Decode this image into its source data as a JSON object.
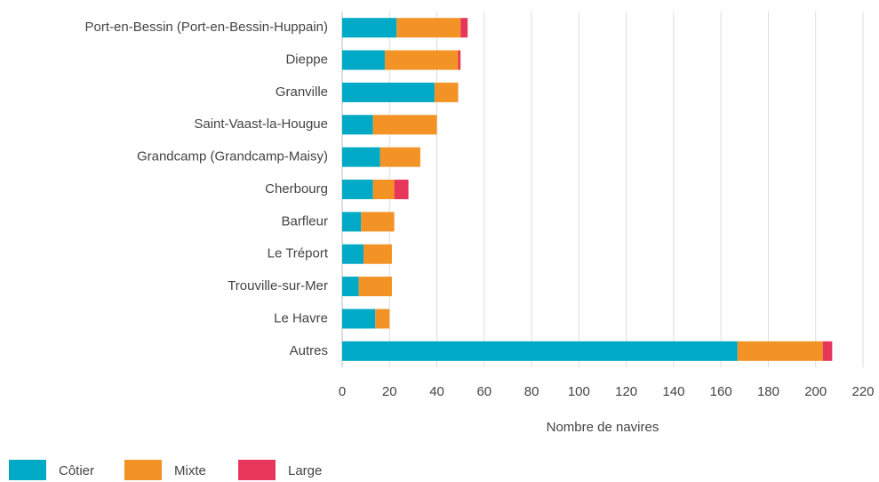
{
  "chart_data": {
    "type": "bar",
    "orientation": "horizontal",
    "stacked": true,
    "categories": [
      "Port-en-Bessin (Port-en-Bessin-Huppain)",
      "Dieppe",
      "Granville",
      "Saint-Vaast-la-Hougue",
      "Grandcamp (Grandcamp-Maisy)",
      "Cherbourg",
      "Barfleur",
      "Le Tréport",
      "Trouville-sur-Mer",
      "Le Havre",
      "Autres"
    ],
    "series": [
      {
        "name": "Côtier",
        "color": "#00a9c5",
        "values": [
          23,
          18,
          39,
          13,
          16,
          13,
          8,
          9,
          7,
          14,
          167
        ]
      },
      {
        "name": "Mixte",
        "color": "#f39325",
        "values": [
          27,
          31,
          10,
          27,
          17,
          9,
          14,
          12,
          14,
          6,
          36
        ]
      },
      {
        "name": "Large",
        "color": "#e6375a",
        "values": [
          3,
          1,
          0,
          0,
          0,
          6,
          0,
          0,
          0,
          0,
          4
        ]
      }
    ],
    "x_label": "Nombre de navires",
    "xlim": [
      0,
      220
    ],
    "xticks": [
      0,
      20,
      40,
      60,
      80,
      100,
      120,
      140,
      160,
      180,
      200,
      220
    ],
    "grid": true,
    "legend": "bottom-left"
  }
}
